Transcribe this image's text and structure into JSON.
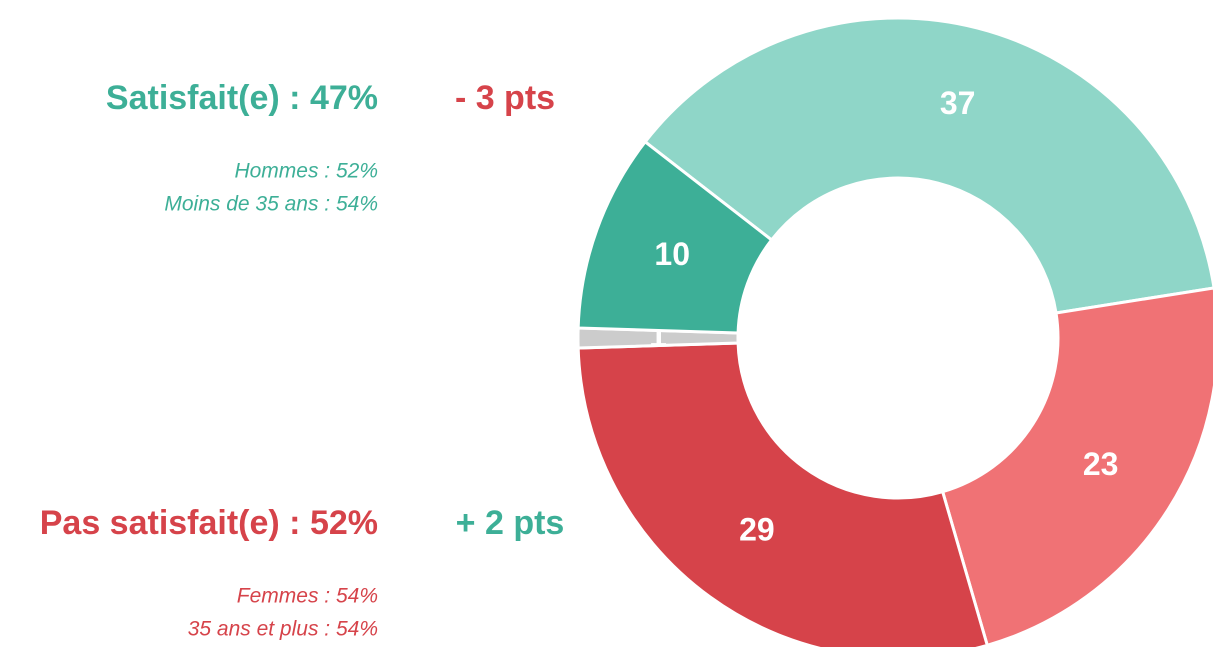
{
  "chart_data": {
    "type": "donut",
    "values": [
      37,
      23,
      29,
      1,
      10
    ],
    "colors": [
      "#8fd6c8",
      "#f07275",
      "#d6434a",
      "#cccccc",
      "#3daf97"
    ],
    "annotations": {
      "satisfied": "Satisfait(e) : 47%",
      "satisfied_change": "- 3 pts",
      "satisfied_detail": [
        "Hommes : 52%",
        "Moins de 35 ans : 54%"
      ],
      "unsatisfied": "Pas satisfait(e) : 52%",
      "unsatisfied_change": "+ 2 pts",
      "unsatisfied_detail": [
        "Femmes : 54%",
        "35 ans et plus : 54%"
      ]
    }
  }
}
